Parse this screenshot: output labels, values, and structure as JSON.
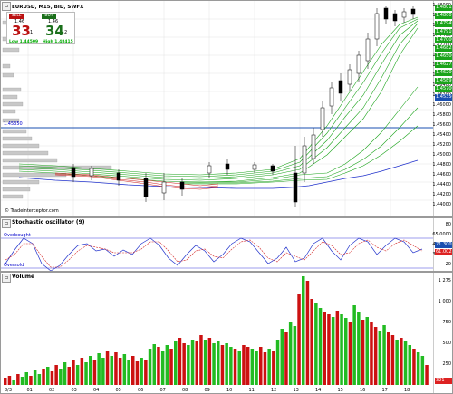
{
  "price_panel": {
    "title": "EURUSD, M15, BID, SWFX",
    "watermark": "© Tradeinterceptor.com",
    "level_line_label": "1.45350",
    "axis_ticks": [
      "1.48000",
      "1.47800",
      "1.47600",
      "1.47400",
      "1.47200",
      "1.47000",
      "1.46800",
      "1.46600",
      "1.46400",
      "1.46200",
      "1.46000",
      "1.45800",
      "1.45600",
      "1.45400",
      "1.45200",
      "1.45000",
      "1.44800",
      "1.44600",
      "1.44400",
      "1.44200",
      "1.44000"
    ],
    "axis_tags": [
      {
        "text": "1.48015",
        "color": "#1aa31a"
      },
      {
        "text": "1.48001",
        "color": "#1aa31a"
      },
      {
        "text": "1.47949",
        "color": "#1aa31a"
      },
      {
        "text": "1.47910",
        "color": "#1aa31a"
      },
      {
        "text": "1.47000",
        "color": "#1aa31a"
      },
      {
        "text": "1.46825",
        "color": "#1aa31a"
      },
      {
        "text": "1.46500",
        "color": "#1aa31a"
      },
      {
        "text": "1.46275",
        "color": "#1aa31a"
      },
      {
        "text": "1.46200",
        "color": "#1aa31a"
      },
      {
        "text": "1.45891",
        "color": "#1aa31a"
      },
      {
        "text": "1.45700",
        "color": "#1aa31a"
      },
      {
        "text": "1.45350",
        "color": "#1a4fb0"
      }
    ]
  },
  "trade_box": {
    "sell_label": "SELL",
    "buy_label": "BUY",
    "sell_prefix": "1.46",
    "sell_big": "33",
    "sell_sup": "1",
    "buy_prefix": "1.46",
    "buy_big": "34",
    "buy_sup": "2",
    "low_label": "Low 1.44509",
    "high_label": "High 1.48415"
  },
  "stochastic_panel": {
    "title": "Stochastic oscillator (9)",
    "overbought_label": "Overbought",
    "oversold_label": "Oversold",
    "axis_ticks": [
      "80",
      "65.0000",
      "49.0000",
      "33.0111",
      "20"
    ],
    "axis_tags": [
      {
        "text": "71.3007",
        "color": "#1a4fb0"
      },
      {
        "text": "61.0023",
        "color": "#d22"
      }
    ]
  },
  "volume_panel": {
    "title": "Volume",
    "axis_ticks": [
      "1 275",
      "1 000",
      "750",
      "500",
      "250"
    ],
    "axis_tags": [
      {
        "text": "321",
        "color": "#d22"
      }
    ]
  },
  "x_axis": {
    "labels": [
      "8/3",
      "01",
      "02",
      "03",
      "04",
      "05",
      "06",
      "07",
      "08",
      "09",
      "10",
      "11",
      "12",
      "13",
      "14",
      "15",
      "16",
      "17",
      "18"
    ]
  },
  "colors": {
    "up_candle": "#ffffff",
    "down_candle": "#000000",
    "ma_green": "#1aa31a",
    "ma_red": "#d22222",
    "ma_blue": "#2233cc",
    "volume_up": "#22bb22",
    "volume_down": "#cc1111"
  }
}
